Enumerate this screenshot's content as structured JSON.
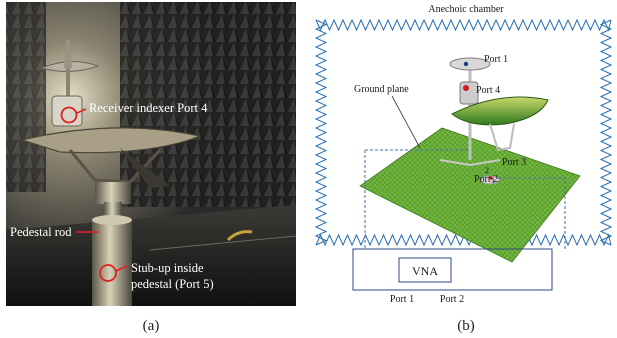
{
  "panel_a": {
    "labels": {
      "receiver": "Receiver indexer Port 4",
      "rod": "Pedestal rod",
      "stub_line1": "Stub-up inside",
      "stub_line2": "pedestal (Port 5)"
    },
    "caption": "(a)"
  },
  "panel_b": {
    "title": "Anechoic chamber",
    "ground_plane": "Ground plane",
    "port1": "Port 1",
    "port2": "Port 2",
    "port3": "Port 3",
    "port4": "Port 4",
    "vna": "VNA",
    "vna_port1": "Port 1",
    "vna_port2": "Port 2",
    "markers": [
      "1",
      "2"
    ],
    "caption": "(b)"
  },
  "colors": {
    "absorber": "#2a6fb0",
    "ground": "#5a9a2a",
    "dish": "#4d9a2e",
    "port_dot": "#d81818",
    "marker_circle": "#e02020",
    "cable": "#4a6fa5"
  }
}
